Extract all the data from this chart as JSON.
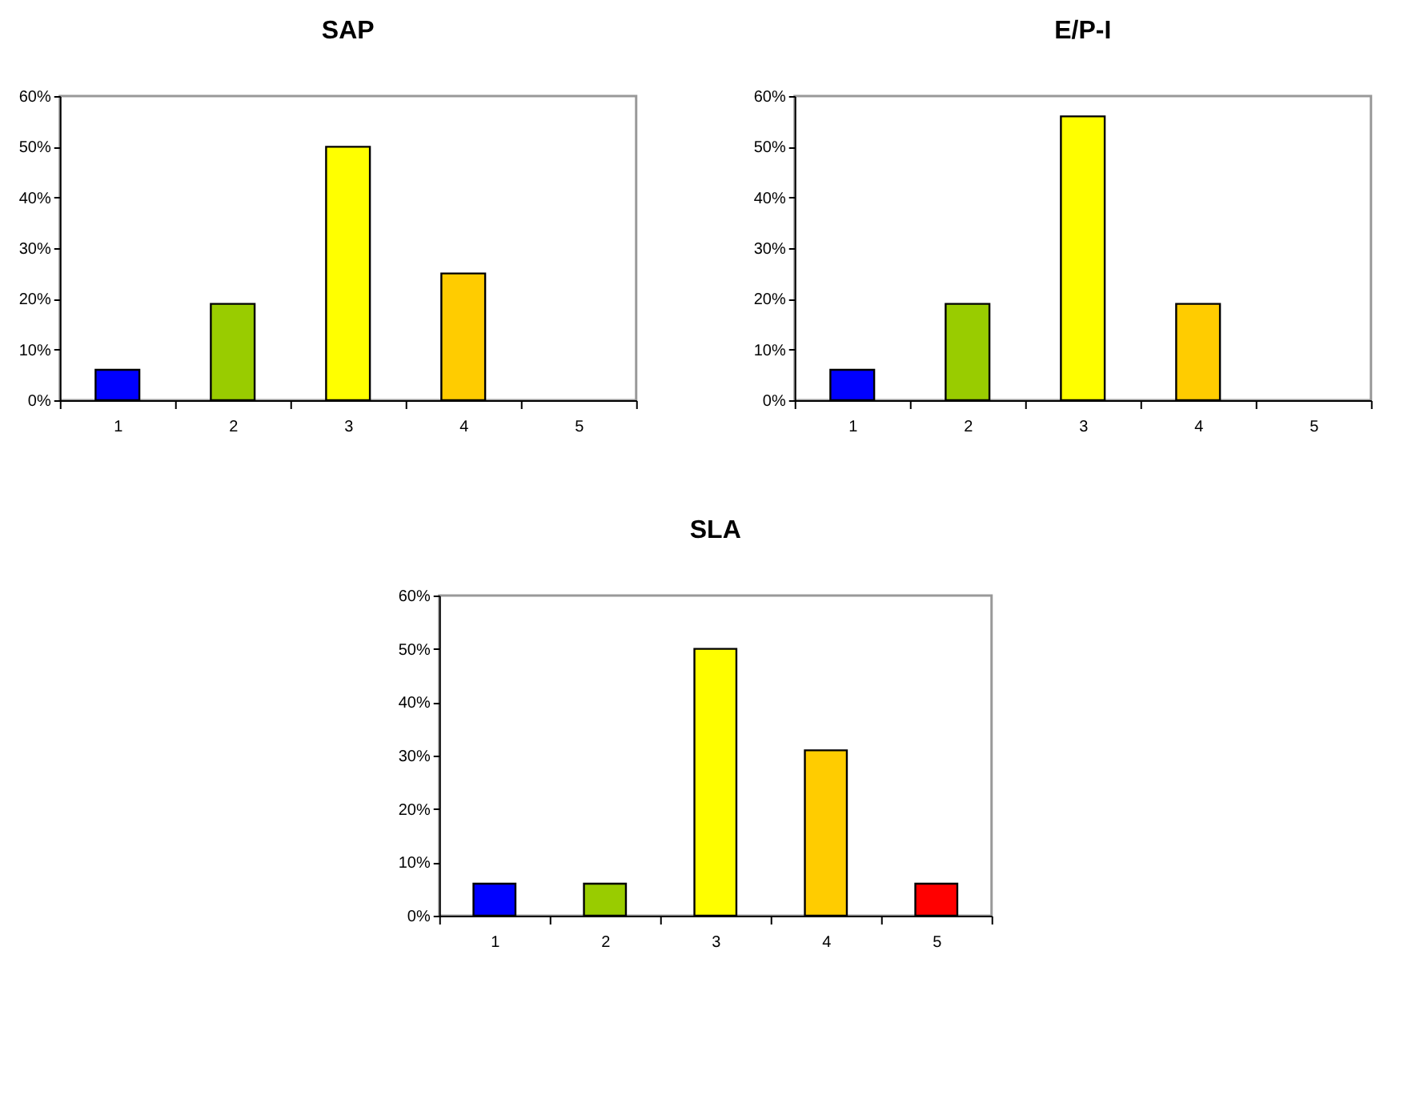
{
  "chart_data": [
    {
      "type": "bar",
      "title": "SAP",
      "categories": [
        "1",
        "2",
        "3",
        "4",
        "5"
      ],
      "values": [
        6,
        19,
        50,
        25,
        0
      ],
      "colors": [
        "#0000ff",
        "#99cc00",
        "#ffff00",
        "#ffcc00",
        null
      ],
      "ylim": [
        0,
        60
      ],
      "yticks": [
        {
          "value": 0,
          "label": "0%"
        },
        {
          "value": 10,
          "label": "10%"
        },
        {
          "value": 20,
          "label": "20%"
        },
        {
          "value": 30,
          "label": "30%"
        },
        {
          "value": 40,
          "label": "40%"
        },
        {
          "value": 50,
          "label": "50%"
        },
        {
          "value": 60,
          "label": "60%"
        }
      ],
      "grid": false
    },
    {
      "type": "bar",
      "title": "E/P-I",
      "categories": [
        "1",
        "2",
        "3",
        "4",
        "5"
      ],
      "values": [
        6,
        19,
        56,
        19,
        0
      ],
      "colors": [
        "#0000ff",
        "#99cc00",
        "#ffff00",
        "#ffcc00",
        null
      ],
      "ylim": [
        0,
        60
      ],
      "yticks": [
        {
          "value": 0,
          "label": "0%"
        },
        {
          "value": 10,
          "label": "10%"
        },
        {
          "value": 20,
          "label": "20%"
        },
        {
          "value": 30,
          "label": "30%"
        },
        {
          "value": 40,
          "label": "40%"
        },
        {
          "value": 50,
          "label": "50%"
        },
        {
          "value": 60,
          "label": "60%"
        }
      ],
      "grid": false
    },
    {
      "type": "bar",
      "title": "SLA",
      "categories": [
        "1",
        "2",
        "3",
        "4",
        "5"
      ],
      "values": [
        6,
        6,
        50,
        31,
        6
      ],
      "colors": [
        "#0000ff",
        "#99cc00",
        "#ffff00",
        "#ffcc00",
        "#ff0000"
      ],
      "ylim": [
        0,
        60
      ],
      "yticks": [
        {
          "value": 0,
          "label": "0%"
        },
        {
          "value": 10,
          "label": "10%"
        },
        {
          "value": 20,
          "label": "20%"
        },
        {
          "value": 30,
          "label": "30%"
        },
        {
          "value": 40,
          "label": "40%"
        },
        {
          "value": 50,
          "label": "50%"
        },
        {
          "value": 60,
          "label": "60%"
        }
      ],
      "grid": false
    }
  ]
}
